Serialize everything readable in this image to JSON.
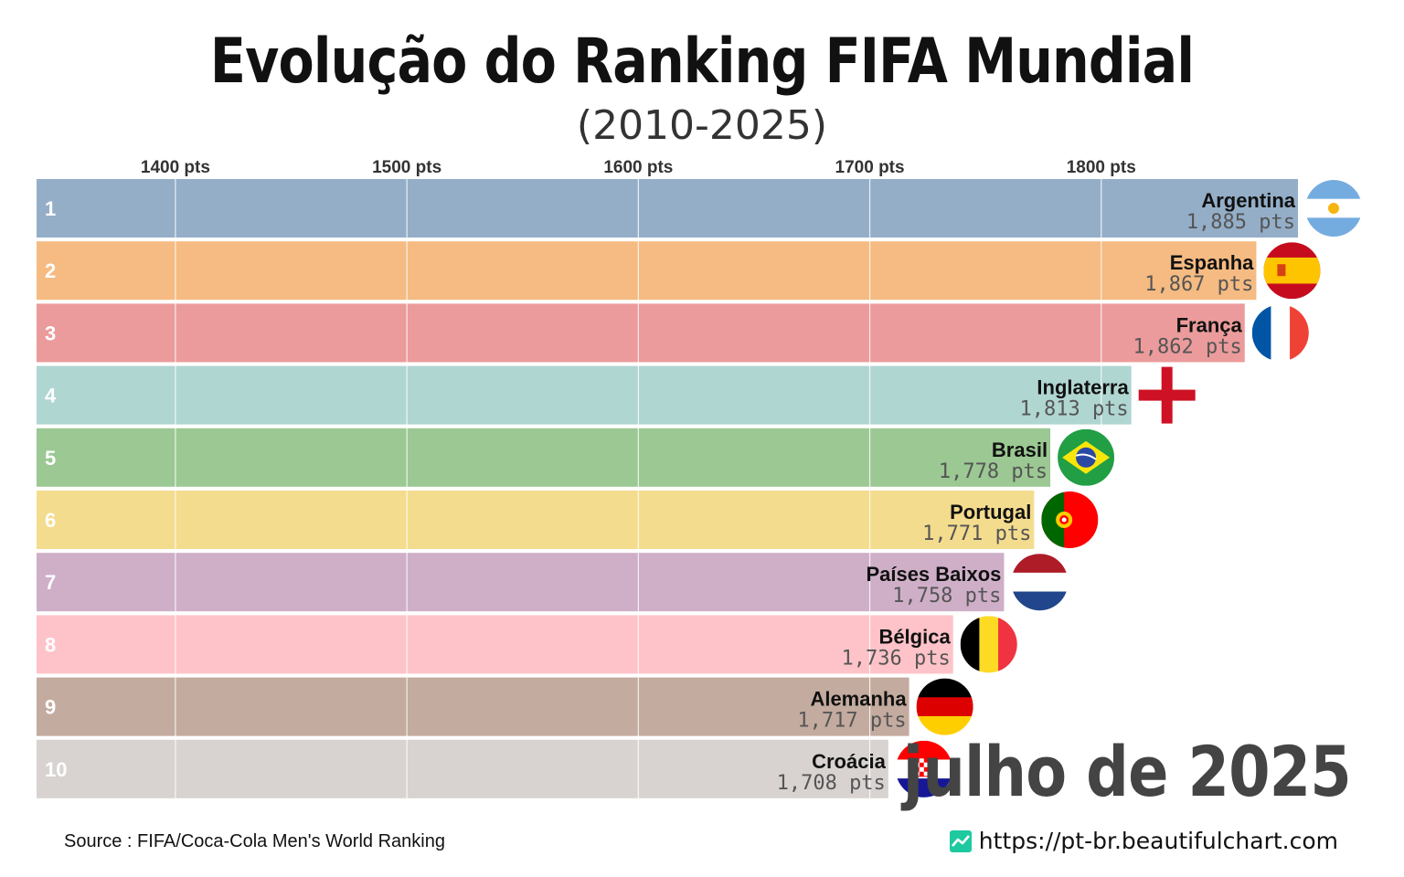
{
  "title": "Evolução do Ranking FIFA Mundial",
  "subtitle": "(2010-2025)",
  "period_label": "julho de 2025",
  "source": "Source : FIFA/Coca-Cola Men's World Ranking",
  "site_url": "https://pt-br.beautifulchart.com",
  "site_icon": "chart-line-icon",
  "chart_data": {
    "type": "bar",
    "orientation": "horizontal",
    "title": "Evolução do Ranking FIFA Mundial",
    "subtitle": "(2010-2025)",
    "x_ticks": [
      1400,
      1500,
      1600,
      1700,
      1800
    ],
    "tick_suffix": " pts",
    "xlim": [
      1340,
      1885
    ],
    "grid": true,
    "legend": "none",
    "bars": [
      {
        "rank": "1",
        "country": "Argentina",
        "value": 1885,
        "value_label": "1,885 pts",
        "color": "#94aec8",
        "flag": "argentina-flag-icon"
      },
      {
        "rank": "2",
        "country": "Espanha",
        "value": 1867,
        "value_label": "1,867 pts",
        "color": "#f5bb82",
        "flag": "spain-flag-icon"
      },
      {
        "rank": "3",
        "country": "França",
        "value": 1862,
        "value_label": "1,862 pts",
        "color": "#eb9b9b",
        "flag": "france-flag-icon"
      },
      {
        "rank": "4",
        "country": "Inglaterra",
        "value": 1813,
        "value_label": "1,813 pts",
        "color": "#b0d6d2",
        "flag": "england-flag-icon"
      },
      {
        "rank": "5",
        "country": "Brasil",
        "value": 1778,
        "value_label": "1,778 pts",
        "color": "#9bc893",
        "flag": "brazil-flag-icon"
      },
      {
        "rank": "6",
        "country": "Portugal",
        "value": 1771,
        "value_label": "1,771 pts",
        "color": "#f4dc8e",
        "flag": "portugal-flag-icon"
      },
      {
        "rank": "7",
        "country": "Países Baixos",
        "value": 1758,
        "value_label": "1,758 pts",
        "color": "#cfafc8",
        "flag": "netherlands-flag-icon"
      },
      {
        "rank": "8",
        "country": "Bélgica",
        "value": 1736,
        "value_label": "1,736 pts",
        "color": "#fec3c8",
        "flag": "belgium-flag-icon"
      },
      {
        "rank": "9",
        "country": "Alemanha",
        "value": 1717,
        "value_label": "1,717 pts",
        "color": "#c4ab9f",
        "flag": "germany-flag-icon"
      },
      {
        "rank": "10",
        "country": "Croácia",
        "value": 1708,
        "value_label": "1,708 pts",
        "color": "#d8d3d1",
        "flag": "croatia-flag-icon"
      }
    ]
  }
}
